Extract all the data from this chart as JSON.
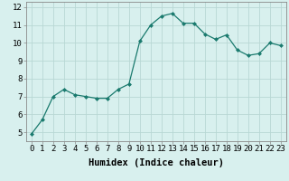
{
  "x": [
    0,
    1,
    2,
    3,
    4,
    5,
    6,
    7,
    8,
    9,
    10,
    11,
    12,
    13,
    14,
    15,
    16,
    17,
    18,
    19,
    20,
    21,
    22,
    23
  ],
  "y": [
    4.9,
    5.7,
    7.0,
    7.4,
    7.1,
    7.0,
    6.9,
    6.9,
    7.4,
    7.7,
    10.1,
    11.0,
    11.5,
    11.65,
    11.1,
    11.1,
    10.5,
    10.2,
    10.45,
    9.6,
    9.3,
    9.4,
    10.0,
    9.85
  ],
  "line_color": "#1a7a6e",
  "marker": "D",
  "marker_size": 2.0,
  "bg_color": "#d8f0ee",
  "grid_color": "#b8d8d4",
  "xlabel": "Humidex (Indice chaleur)",
  "xlim": [
    -0.5,
    23.5
  ],
  "ylim": [
    4.5,
    12.3
  ],
  "yticks": [
    5,
    6,
    7,
    8,
    9,
    10,
    11,
    12
  ],
  "xtick_labels": [
    "0",
    "1",
    "2",
    "3",
    "4",
    "5",
    "6",
    "7",
    "8",
    "9",
    "10",
    "11",
    "12",
    "13",
    "14",
    "15",
    "16",
    "17",
    "18",
    "19",
    "20",
    "21",
    "22",
    "23"
  ],
  "xlabel_fontsize": 7.5,
  "tick_fontsize": 6.5
}
